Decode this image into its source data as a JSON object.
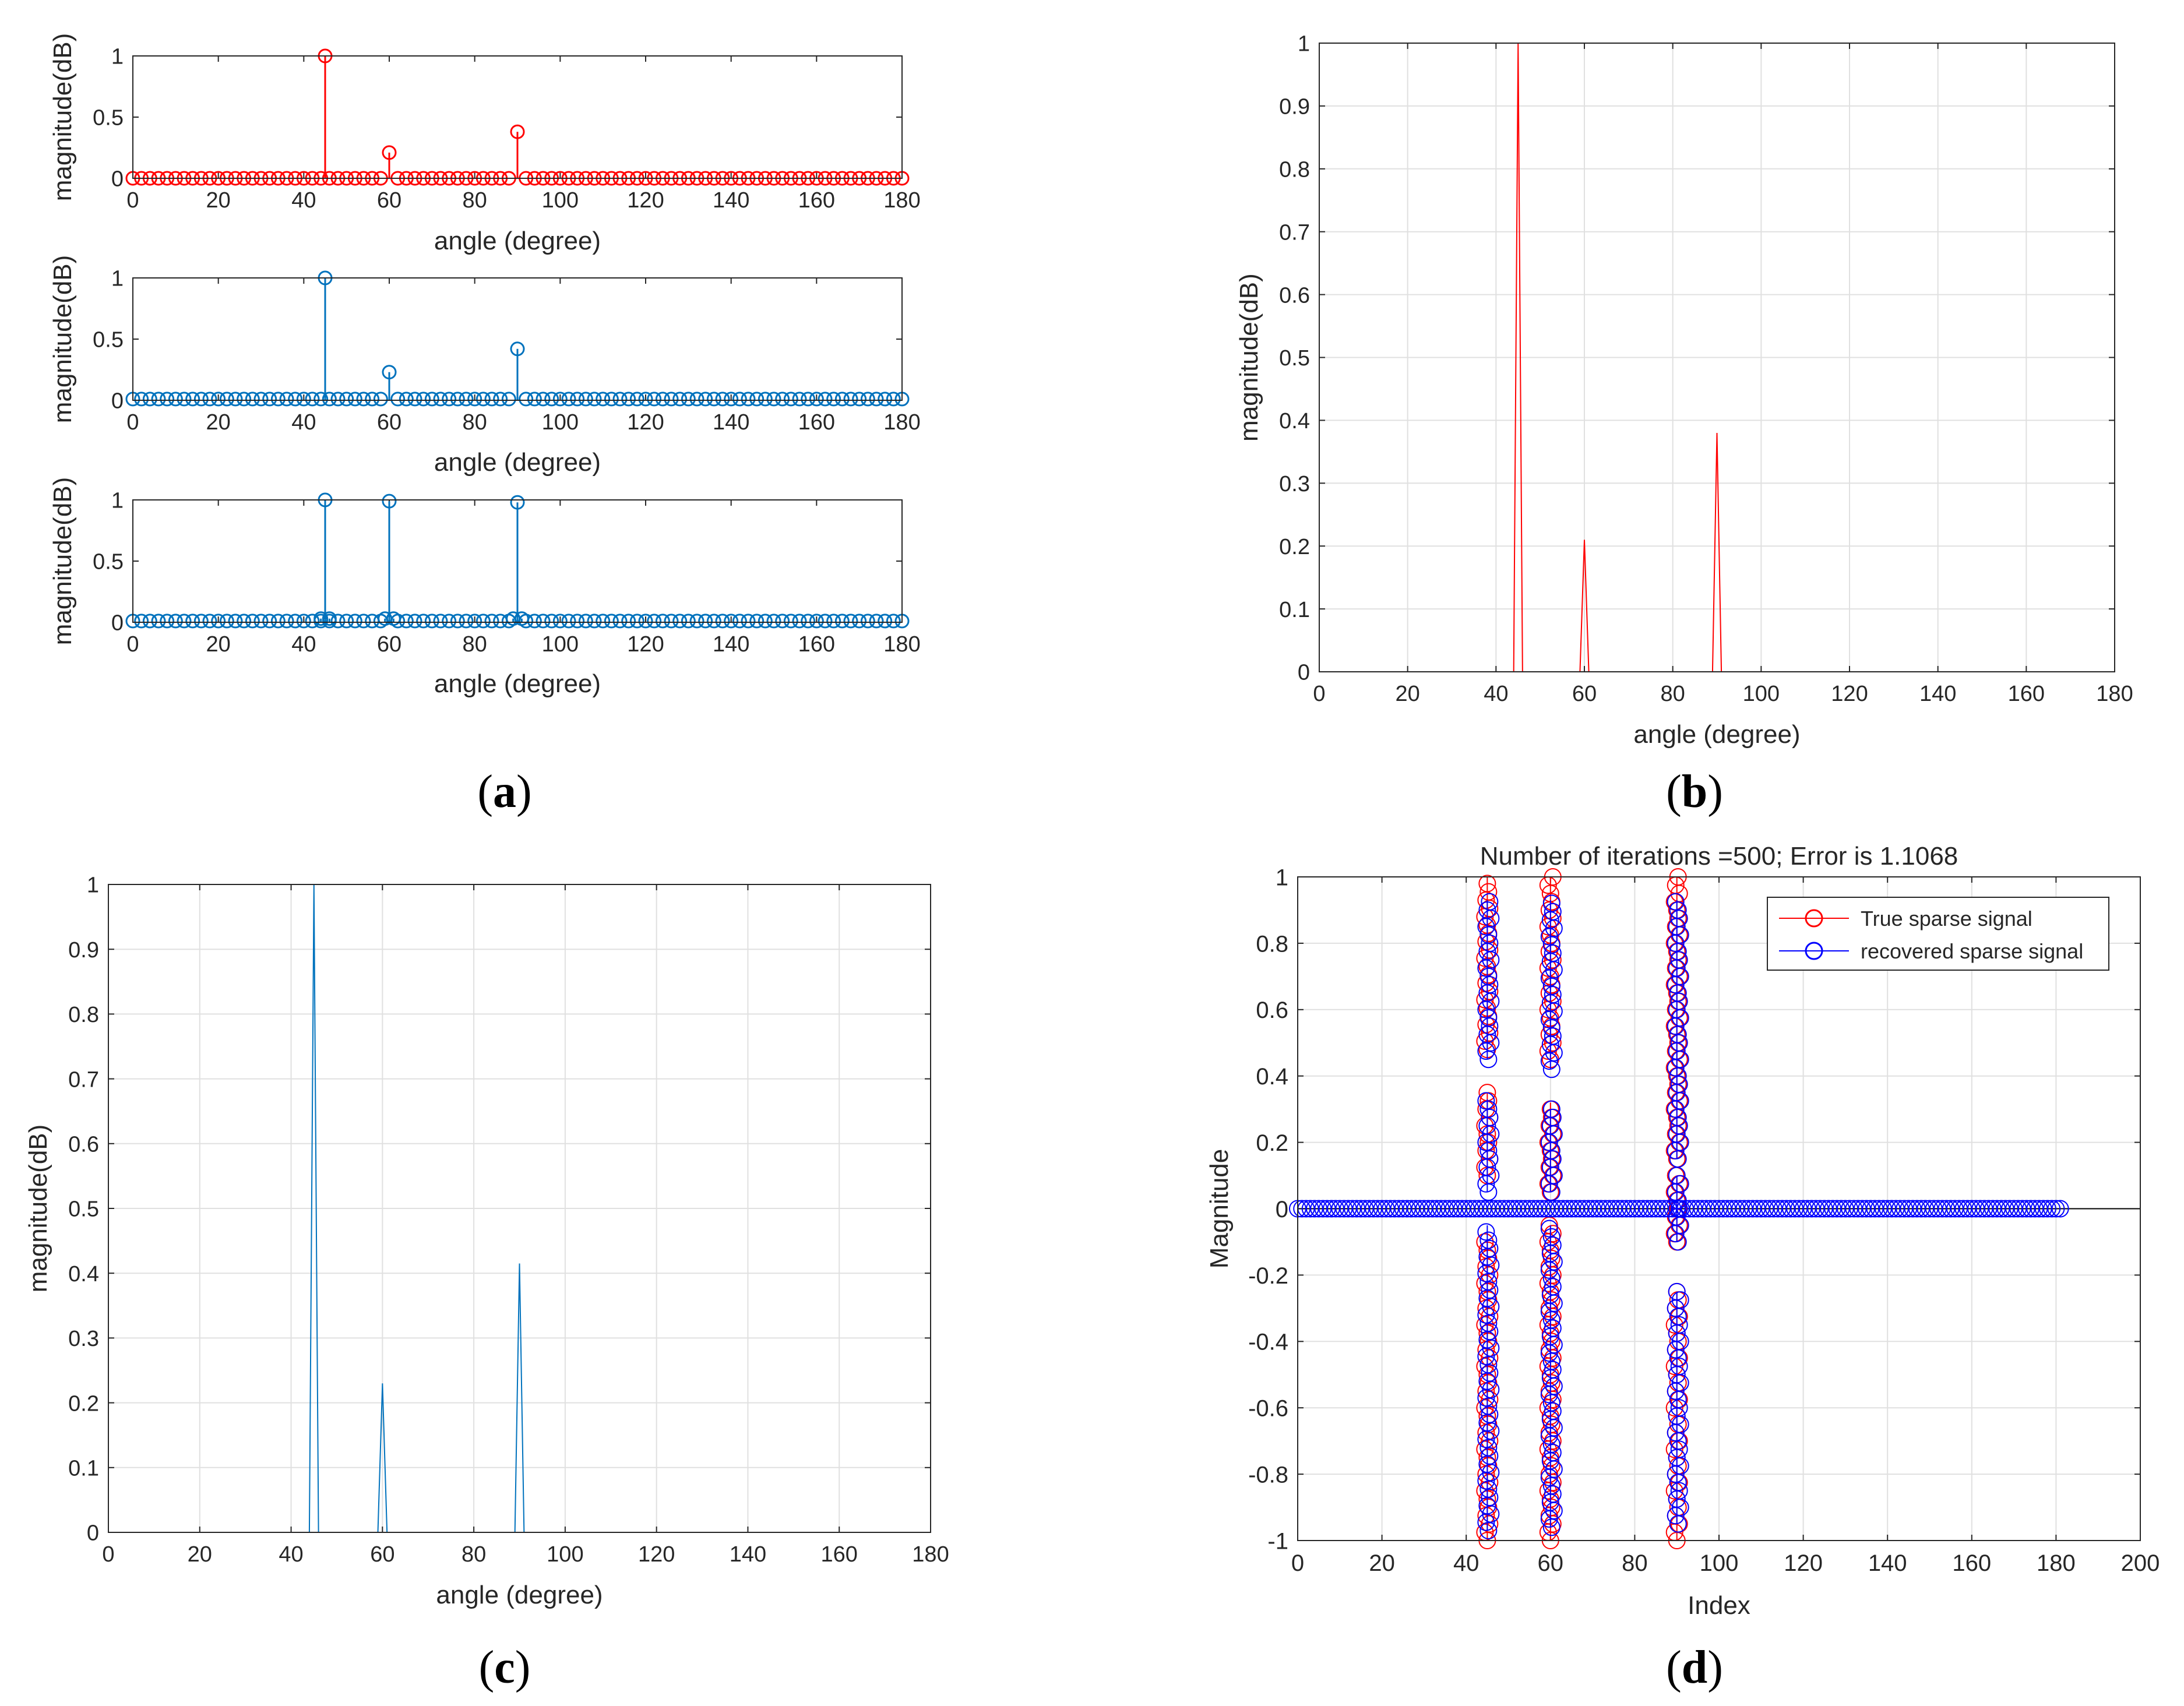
{
  "captions": {
    "a": {
      "letter": "a",
      "open": "(",
      "close": ")"
    },
    "b": {
      "letter": "b",
      "open": "(",
      "close": ")"
    },
    "c": {
      "letter": "c",
      "open": "(",
      "close": ")"
    },
    "d": {
      "letter": "d",
      "open": "(",
      "close": ")"
    }
  },
  "chart_data": [
    {
      "id": "a1",
      "type": "stem",
      "xlabel": "angle (degree)",
      "ylabel": "magnitude(dB)",
      "xlim": [
        0,
        180
      ],
      "ylim": [
        0,
        1
      ],
      "xticks": [
        0,
        20,
        40,
        60,
        80,
        100,
        120,
        140,
        160,
        180
      ],
      "xticklabels": [
        "0",
        "20",
        "40",
        "60",
        "80",
        "100",
        "120",
        "140",
        "160",
        "180"
      ],
      "yticks": [
        0,
        0.5,
        1
      ],
      "yticklabels": [
        "0",
        "0.5",
        "1"
      ],
      "grid": false,
      "color": "#ff0000",
      "x_range": [
        0,
        180
      ],
      "x_step": 2,
      "baseline_value": 0.0,
      "peaks": [
        {
          "x": 45,
          "y": 1.0
        },
        {
          "x": 60,
          "y": 0.21
        },
        {
          "x": 90,
          "y": 0.38
        }
      ]
    },
    {
      "id": "a2",
      "type": "stem",
      "xlabel": "angle (degree)",
      "ylabel": "magnitude(dB)",
      "xlim": [
        0,
        180
      ],
      "ylim": [
        0,
        1
      ],
      "xticks": [
        0,
        20,
        40,
        60,
        80,
        100,
        120,
        140,
        160,
        180
      ],
      "xticklabels": [
        "0",
        "20",
        "40",
        "60",
        "80",
        "100",
        "120",
        "140",
        "160",
        "180"
      ],
      "yticks": [
        0,
        0.5,
        1
      ],
      "yticklabels": [
        "0",
        "0.5",
        "1"
      ],
      "grid": false,
      "color": "#0072bd",
      "x_range": [
        0,
        180
      ],
      "x_step": 2,
      "baseline_value": 0.01,
      "peaks": [
        {
          "x": 45,
          "y": 1.0
        },
        {
          "x": 60,
          "y": 0.23
        },
        {
          "x": 90,
          "y": 0.42
        }
      ]
    },
    {
      "id": "a3",
      "type": "stem",
      "xlabel": "angle (degree)",
      "ylabel": "magnitude(dB)",
      "xlim": [
        0,
        180
      ],
      "ylim": [
        0,
        1
      ],
      "xticks": [
        0,
        20,
        40,
        60,
        80,
        100,
        120,
        140,
        160,
        180
      ],
      "xticklabels": [
        "0",
        "20",
        "40",
        "60",
        "80",
        "100",
        "120",
        "140",
        "160",
        "180"
      ],
      "yticks": [
        0,
        0.5,
        1
      ],
      "yticklabels": [
        "0",
        "0.5",
        "1"
      ],
      "grid": false,
      "color": "#0072bd",
      "x_range": [
        0,
        180
      ],
      "x_step": 2,
      "baseline_value": 0.01,
      "peaks": [
        {
          "x": 45,
          "y": 1.0
        },
        {
          "x": 60,
          "y": 0.99
        },
        {
          "x": 90,
          "y": 0.98
        }
      ],
      "shoulders": [
        {
          "x": 44,
          "y": 0.03
        },
        {
          "x": 46,
          "y": 0.03
        },
        {
          "x": 59,
          "y": 0.03
        },
        {
          "x": 61,
          "y": 0.03
        },
        {
          "x": 89,
          "y": 0.03
        },
        {
          "x": 91,
          "y": 0.03
        }
      ]
    },
    {
      "id": "b",
      "type": "line",
      "xlabel": "angle (degree)",
      "ylabel": "magnitude(dB)",
      "xlim": [
        0,
        180
      ],
      "ylim": [
        0,
        1
      ],
      "xticks": [
        0,
        20,
        40,
        60,
        80,
        100,
        120,
        140,
        160,
        180
      ],
      "xticklabels": [
        "0",
        "20",
        "40",
        "60",
        "80",
        "100",
        "120",
        "140",
        "160",
        "180"
      ],
      "yticks": [
        0,
        0.1,
        0.2,
        0.3,
        0.4,
        0.5,
        0.6,
        0.7,
        0.8,
        0.9,
        1
      ],
      "yticklabels": [
        "0",
        "0.1",
        "0.2",
        "0.3",
        "0.4",
        "0.5",
        "0.6",
        "0.7",
        "0.8",
        "0.9",
        "1"
      ],
      "grid": true,
      "color": "#ff0000",
      "x": [
        0,
        44,
        45,
        46,
        59,
        60,
        61,
        89,
        90,
        91,
        180
      ],
      "y": [
        0,
        0,
        1.0,
        0,
        0,
        0.21,
        0,
        0,
        0.38,
        0,
        0
      ]
    },
    {
      "id": "c",
      "type": "line",
      "xlabel": "angle (degree)",
      "ylabel": "magnitude(dB)",
      "xlim": [
        0,
        180
      ],
      "ylim": [
        0,
        1
      ],
      "xticks": [
        0,
        20,
        40,
        60,
        80,
        100,
        120,
        140,
        160,
        180
      ],
      "xticklabels": [
        "0",
        "20",
        "40",
        "60",
        "80",
        "100",
        "120",
        "140",
        "160",
        "180"
      ],
      "yticks": [
        0,
        0.1,
        0.2,
        0.3,
        0.4,
        0.5,
        0.6,
        0.7,
        0.8,
        0.9,
        1
      ],
      "yticklabels": [
        "0",
        "0.1",
        "0.2",
        "0.3",
        "0.4",
        "0.5",
        "0.6",
        "0.7",
        "0.8",
        "0.9",
        "1"
      ],
      "grid": true,
      "color": "#0072bd",
      "x": [
        0,
        44,
        45,
        46,
        59,
        60,
        61,
        89,
        90,
        91,
        180
      ],
      "y": [
        0,
        0,
        1.0,
        0,
        0,
        0.23,
        0,
        0,
        0.415,
        0,
        0
      ]
    },
    {
      "id": "d",
      "type": "scatter",
      "title": "Number of iterations =500; Error is 1.1068",
      "xlabel": "Index",
      "ylabel": "Magnitude",
      "xlim": [
        0,
        200
      ],
      "ylim": [
        -1,
        1
      ],
      "xticks": [
        0,
        20,
        40,
        60,
        80,
        100,
        120,
        140,
        160,
        180,
        200
      ],
      "xticklabels": [
        "0",
        "20",
        "40",
        "60",
        "80",
        "100",
        "120",
        "140",
        "160",
        "180",
        "200"
      ],
      "yticks": [
        -1,
        -0.8,
        -0.6,
        -0.4,
        -0.2,
        0,
        0.2,
        0.4,
        0.6,
        0.8,
        1
      ],
      "yticklabels": [
        "-1",
        "-0.8",
        "-0.6",
        "-0.4",
        "-0.2",
        "0",
        "0.2",
        "0.4",
        "0.6",
        "0.8",
        "1"
      ],
      "grid": true,
      "legend_position": "top-right",
      "baseline": {
        "x_range": [
          0,
          181
        ],
        "y": 0
      },
      "series": [
        {
          "name": "True sparse signal",
          "color": "#ff0000",
          "columns": [
            {
              "x": 45,
              "segments": [
                [
                  -1,
                  -0.1
                ],
                [
                  0.1,
                  0.35
                ],
                [
                  0.48,
                  1
                ]
              ]
            },
            {
              "x": 60,
              "segments": [
                [
                  -1,
                  -0.05
                ],
                [
                  0.05,
                  0.32
                ],
                [
                  0.45,
                  1
                ]
              ]
            },
            {
              "x": 90,
              "segments": [
                [
                  -1,
                  -0.25
                ],
                [
                  -0.1,
                  0.1
                ],
                [
                  0.15,
                  1
                ]
              ]
            }
          ]
        },
        {
          "name": "recovered sparse signal",
          "color": "#0000ff",
          "columns": [
            {
              "x": 45,
              "segments": [
                [
                  -0.97,
                  -0.05
                ],
                [
                  0.05,
                  0.33
                ],
                [
                  0.45,
                  0.93
                ]
              ]
            },
            {
              "x": 60,
              "segments": [
                [
                  -0.96,
                  -0.05
                ],
                [
                  0.05,
                  0.3
                ],
                [
                  0.42,
                  0.93
                ]
              ]
            },
            {
              "x": 90,
              "segments": [
                [
                  -0.95,
                  -0.25
                ],
                [
                  -0.1,
                  0.1
                ],
                [
                  0.15,
                  0.93
                ]
              ]
            }
          ]
        }
      ]
    }
  ]
}
